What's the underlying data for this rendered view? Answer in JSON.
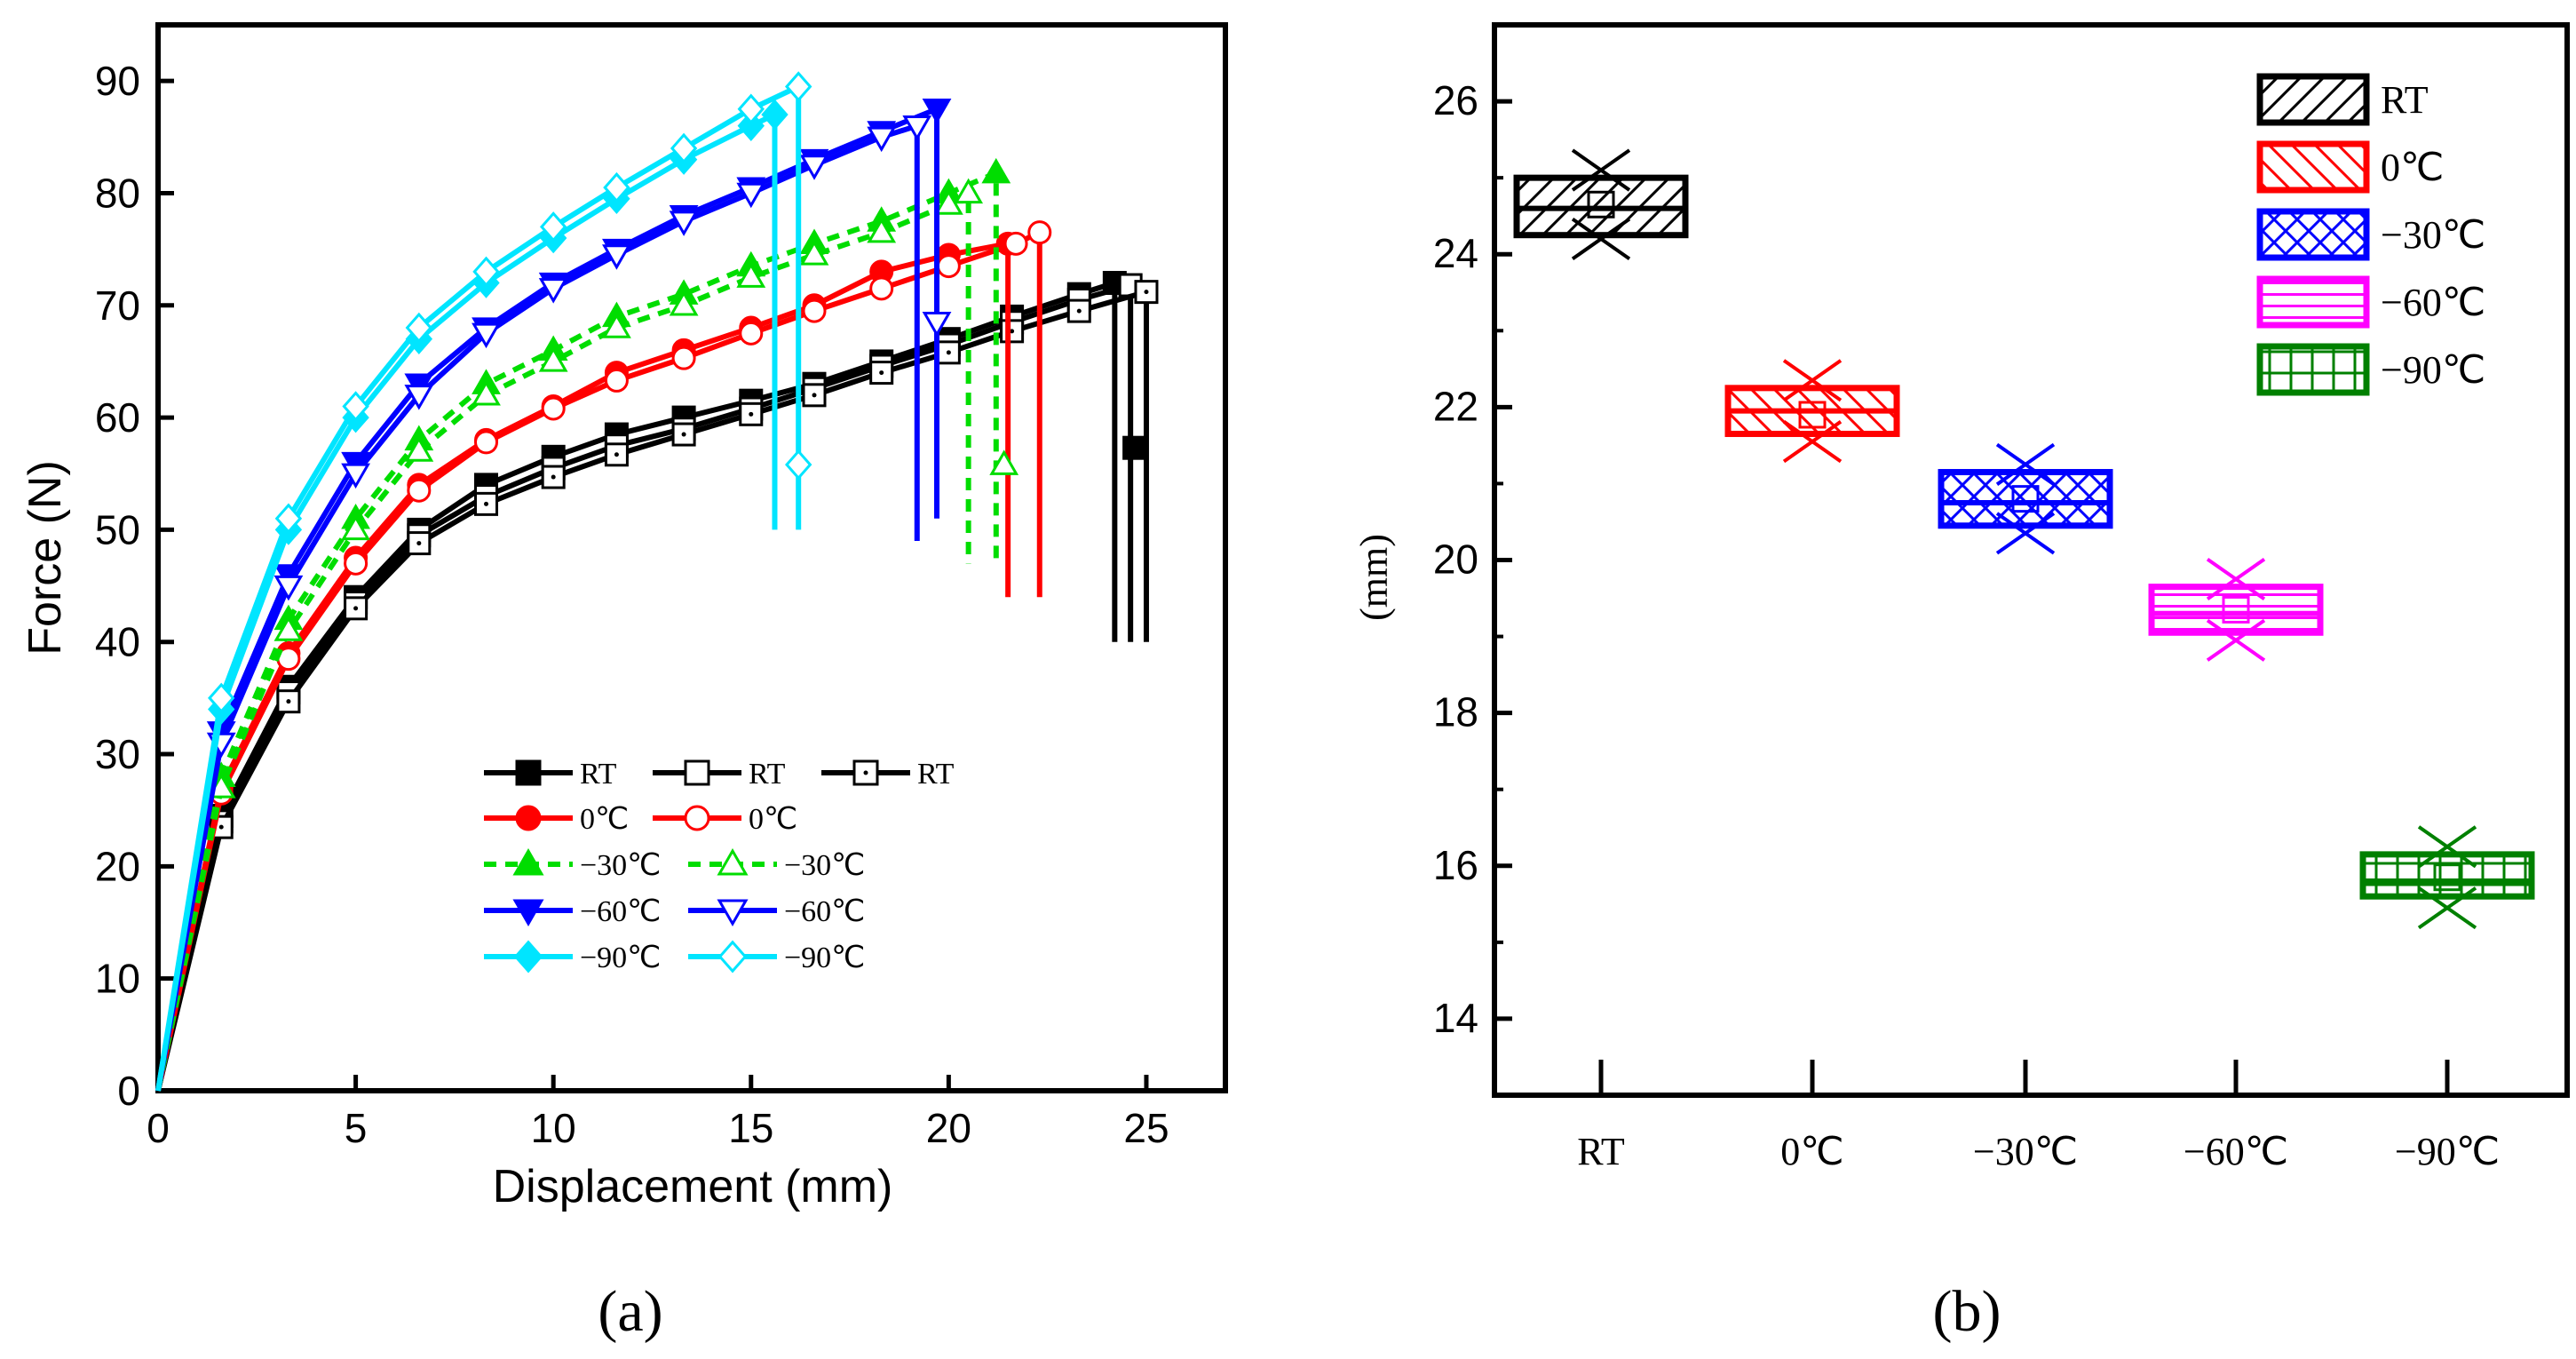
{
  "chart_data": [
    {
      "type": "line",
      "panel": "a",
      "caption": "(a)",
      "xlabel": "Displacement (mm)",
      "ylabel": "Force (N)",
      "xlim": [
        0,
        27
      ],
      "ylim": [
        0,
        95
      ],
      "xticks": [
        0,
        5,
        10,
        15,
        20,
        25
      ],
      "yticks": [
        0,
        10,
        20,
        30,
        40,
        50,
        60,
        70,
        80,
        90
      ],
      "legend_position": "bottom-center",
      "series": [
        {
          "name": "RT",
          "group": "RT",
          "color": "#000000",
          "marker": "square-filled",
          "dashed": false,
          "x": [
            0,
            1.6,
            3.3,
            5.0,
            6.6,
            8.3,
            10.0,
            11.6,
            13.3,
            15.0,
            16.6,
            18.3,
            20.0,
            21.6,
            23.3,
            24.2,
            24.2
          ],
          "y": [
            0,
            24.5,
            36,
            44,
            50,
            54,
            56.5,
            58.5,
            60,
            61.5,
            63,
            65,
            67,
            69,
            71,
            72,
            40
          ],
          "failure_marker": {
            "x": 24.7,
            "y": 57.3
          }
        },
        {
          "name": "RT",
          "group": "RT",
          "color": "#000000",
          "marker": "square-open",
          "dashed": false,
          "x": [
            0,
            1.6,
            3.3,
            5.0,
            6.6,
            8.3,
            10.0,
            11.6,
            13.3,
            15.0,
            16.6,
            18.3,
            20.0,
            21.6,
            23.3,
            24.6,
            24.6
          ],
          "y": [
            0,
            24,
            35.5,
            43.5,
            49.5,
            53,
            55.5,
            57.5,
            59,
            60.8,
            62.6,
            64.6,
            66.5,
            68.5,
            70.5,
            71.8,
            40
          ]
        },
        {
          "name": "RT",
          "group": "RT",
          "color": "#000000",
          "marker": "square-dot",
          "dashed": false,
          "x": [
            0,
            1.6,
            3.3,
            5.0,
            6.6,
            8.3,
            10.0,
            11.6,
            13.3,
            15.0,
            16.6,
            18.3,
            20.0,
            21.6,
            23.3,
            25.0,
            25.0
          ],
          "y": [
            0,
            23.5,
            34.7,
            43,
            48.8,
            52.3,
            54.7,
            56.7,
            58.5,
            60.3,
            62,
            64,
            65.8,
            67.7,
            69.5,
            71.2,
            40
          ]
        },
        {
          "name": "0℃",
          "group": "0℃",
          "color": "#ff0000",
          "marker": "circle-filled",
          "dashed": false,
          "x": [
            0,
            1.6,
            3.3,
            5.0,
            6.6,
            8.3,
            10.0,
            11.6,
            13.3,
            15.0,
            16.6,
            18.3,
            20.0,
            21.5,
            21.5
          ],
          "y": [
            0,
            27,
            39,
            47.5,
            54,
            58,
            61,
            64,
            66,
            68,
            70,
            73,
            74.5,
            75.5,
            44
          ]
        },
        {
          "name": "0℃",
          "group": "0℃",
          "color": "#ff0000",
          "marker": "circle-open",
          "dashed": false,
          "x": [
            0,
            1.6,
            3.3,
            5.0,
            6.6,
            8.3,
            10.0,
            11.6,
            13.3,
            15.0,
            16.6,
            18.3,
            20.0,
            21.7,
            22.3,
            22.3
          ],
          "y": [
            0,
            26.5,
            38.5,
            47,
            53.5,
            57.8,
            60.8,
            63.3,
            65.3,
            67.5,
            69.5,
            71.5,
            73.5,
            75.5,
            76.5,
            44
          ]
        },
        {
          "name": "−30℃",
          "group": "−30℃",
          "color": "#00dd00",
          "marker": "triangle-up",
          "dashed": true,
          "x": [
            0,
            1.6,
            3.3,
            5.0,
            6.6,
            8.3,
            10.0,
            11.6,
            13.3,
            15.0,
            16.6,
            18.3,
            20.0,
            21.2,
            21.2
          ],
          "y": [
            0,
            28,
            42,
            51,
            58,
            63,
            66,
            69,
            71,
            73.5,
            75.5,
            77.5,
            80,
            81.8,
            47
          ]
        },
        {
          "name": "−30℃",
          "group": "−30℃",
          "color": "#00dd00",
          "marker": "triangle-up-open",
          "dashed": true,
          "x": [
            0,
            1.6,
            3.3,
            5.0,
            6.6,
            8.3,
            10.0,
            11.6,
            13.3,
            15.0,
            16.6,
            18.3,
            20.0,
            20.5,
            20.5
          ],
          "y": [
            0,
            27,
            41,
            50,
            57,
            62,
            65,
            68,
            70,
            72.5,
            74.5,
            76.5,
            79,
            80,
            47
          ],
          "failure_marker": {
            "x": 21.4,
            "y": 55.8
          }
        },
        {
          "name": "−60℃",
          "group": "−60℃",
          "color": "#0000ff",
          "marker": "triangle-down",
          "dashed": false,
          "x": [
            0,
            1.6,
            3.3,
            5.0,
            6.6,
            8.3,
            10.0,
            11.6,
            13.3,
            15.0,
            16.6,
            18.3,
            19.7,
            19.7
          ],
          "y": [
            0,
            32,
            46,
            56,
            63,
            68,
            72,
            75,
            78,
            80.5,
            83,
            85.5,
            87.5,
            51
          ]
        },
        {
          "name": "−60℃",
          "group": "−60℃",
          "color": "#0000ff",
          "marker": "triangle-down-open",
          "dashed": false,
          "x": [
            0,
            1.6,
            3.3,
            5.0,
            6.6,
            8.3,
            10.0,
            11.6,
            13.3,
            15.0,
            16.6,
            18.3,
            19.2,
            19.2
          ],
          "y": [
            0,
            31,
            45,
            55,
            62,
            67.5,
            71.5,
            74.5,
            77.5,
            80,
            82.5,
            85,
            86,
            49
          ],
          "failure_marker": {
            "x": 19.7,
            "y": 68.5
          }
        },
        {
          "name": "−90℃",
          "group": "−90℃",
          "color": "#00e5ff",
          "marker": "diamond-filled",
          "dashed": false,
          "x": [
            0,
            1.6,
            3.3,
            5.0,
            6.6,
            8.3,
            10.0,
            11.6,
            13.3,
            15.0,
            15.6,
            15.6
          ],
          "y": [
            0,
            34,
            50,
            60,
            67,
            72,
            76,
            79.5,
            83,
            86,
            87,
            50
          ]
        },
        {
          "name": "−90℃",
          "group": "−90℃",
          "color": "#00e5ff",
          "marker": "diamond-open",
          "dashed": false,
          "x": [
            0,
            1.6,
            3.3,
            5.0,
            6.6,
            8.3,
            10.0,
            11.6,
            13.3,
            15.0,
            16.2,
            16.2
          ],
          "y": [
            0,
            35,
            51,
            61,
            68,
            73,
            77,
            80.5,
            84,
            87.5,
            89.5,
            50
          ],
          "failure_marker": {
            "x": 16.2,
            "y": 55.8
          }
        }
      ],
      "legend_rows": [
        {
          "labels": [
            "RT",
            "RT",
            "RT"
          ]
        },
        {
          "labels": [
            "0℃",
            "0℃"
          ]
        },
        {
          "labels": [
            "−30℃",
            "−30℃"
          ]
        },
        {
          "labels": [
            "−60℃",
            "−60℃"
          ]
        },
        {
          "labels": [
            "−90℃",
            "−90℃"
          ]
        }
      ]
    },
    {
      "type": "box",
      "panel": "b",
      "caption": "(b)",
      "xlabel": "",
      "ylabel": "(mm)",
      "ylim": [
        13,
        27
      ],
      "yticks": [
        14,
        16,
        18,
        20,
        22,
        24,
        26
      ],
      "categories": [
        "RT",
        "0℃",
        "−30℃",
        "−60℃",
        "−90℃"
      ],
      "legend_position": "top-right",
      "boxes": [
        {
          "name": "RT",
          "color": "#000000",
          "pattern": "diag-forward",
          "q1": 24.25,
          "median": 24.6,
          "mean": 24.65,
          "q3": 25.0,
          "min": 24.2,
          "max": 25.1
        },
        {
          "name": "0℃",
          "color": "#ff0000",
          "pattern": "diag-back",
          "q1": 21.65,
          "median": 21.95,
          "mean": 21.9,
          "q3": 22.25,
          "min": 21.55,
          "max": 22.35
        },
        {
          "name": "−30℃",
          "color": "#0000ff",
          "pattern": "cross-diag",
          "q1": 20.45,
          "median": 20.75,
          "mean": 20.8,
          "q3": 21.15,
          "min": 20.35,
          "max": 21.25
        },
        {
          "name": "−60℃",
          "color": "#ff00ff",
          "pattern": "horizontal",
          "q1": 19.05,
          "median": 19.3,
          "mean": 19.35,
          "q3": 19.65,
          "min": 18.95,
          "max": 19.75
        },
        {
          "name": "−90℃",
          "color": "#008000",
          "pattern": "grid",
          "q1": 15.6,
          "median": 15.8,
          "mean": 15.85,
          "q3": 16.15,
          "min": 15.45,
          "max": 16.25
        }
      ]
    }
  ]
}
